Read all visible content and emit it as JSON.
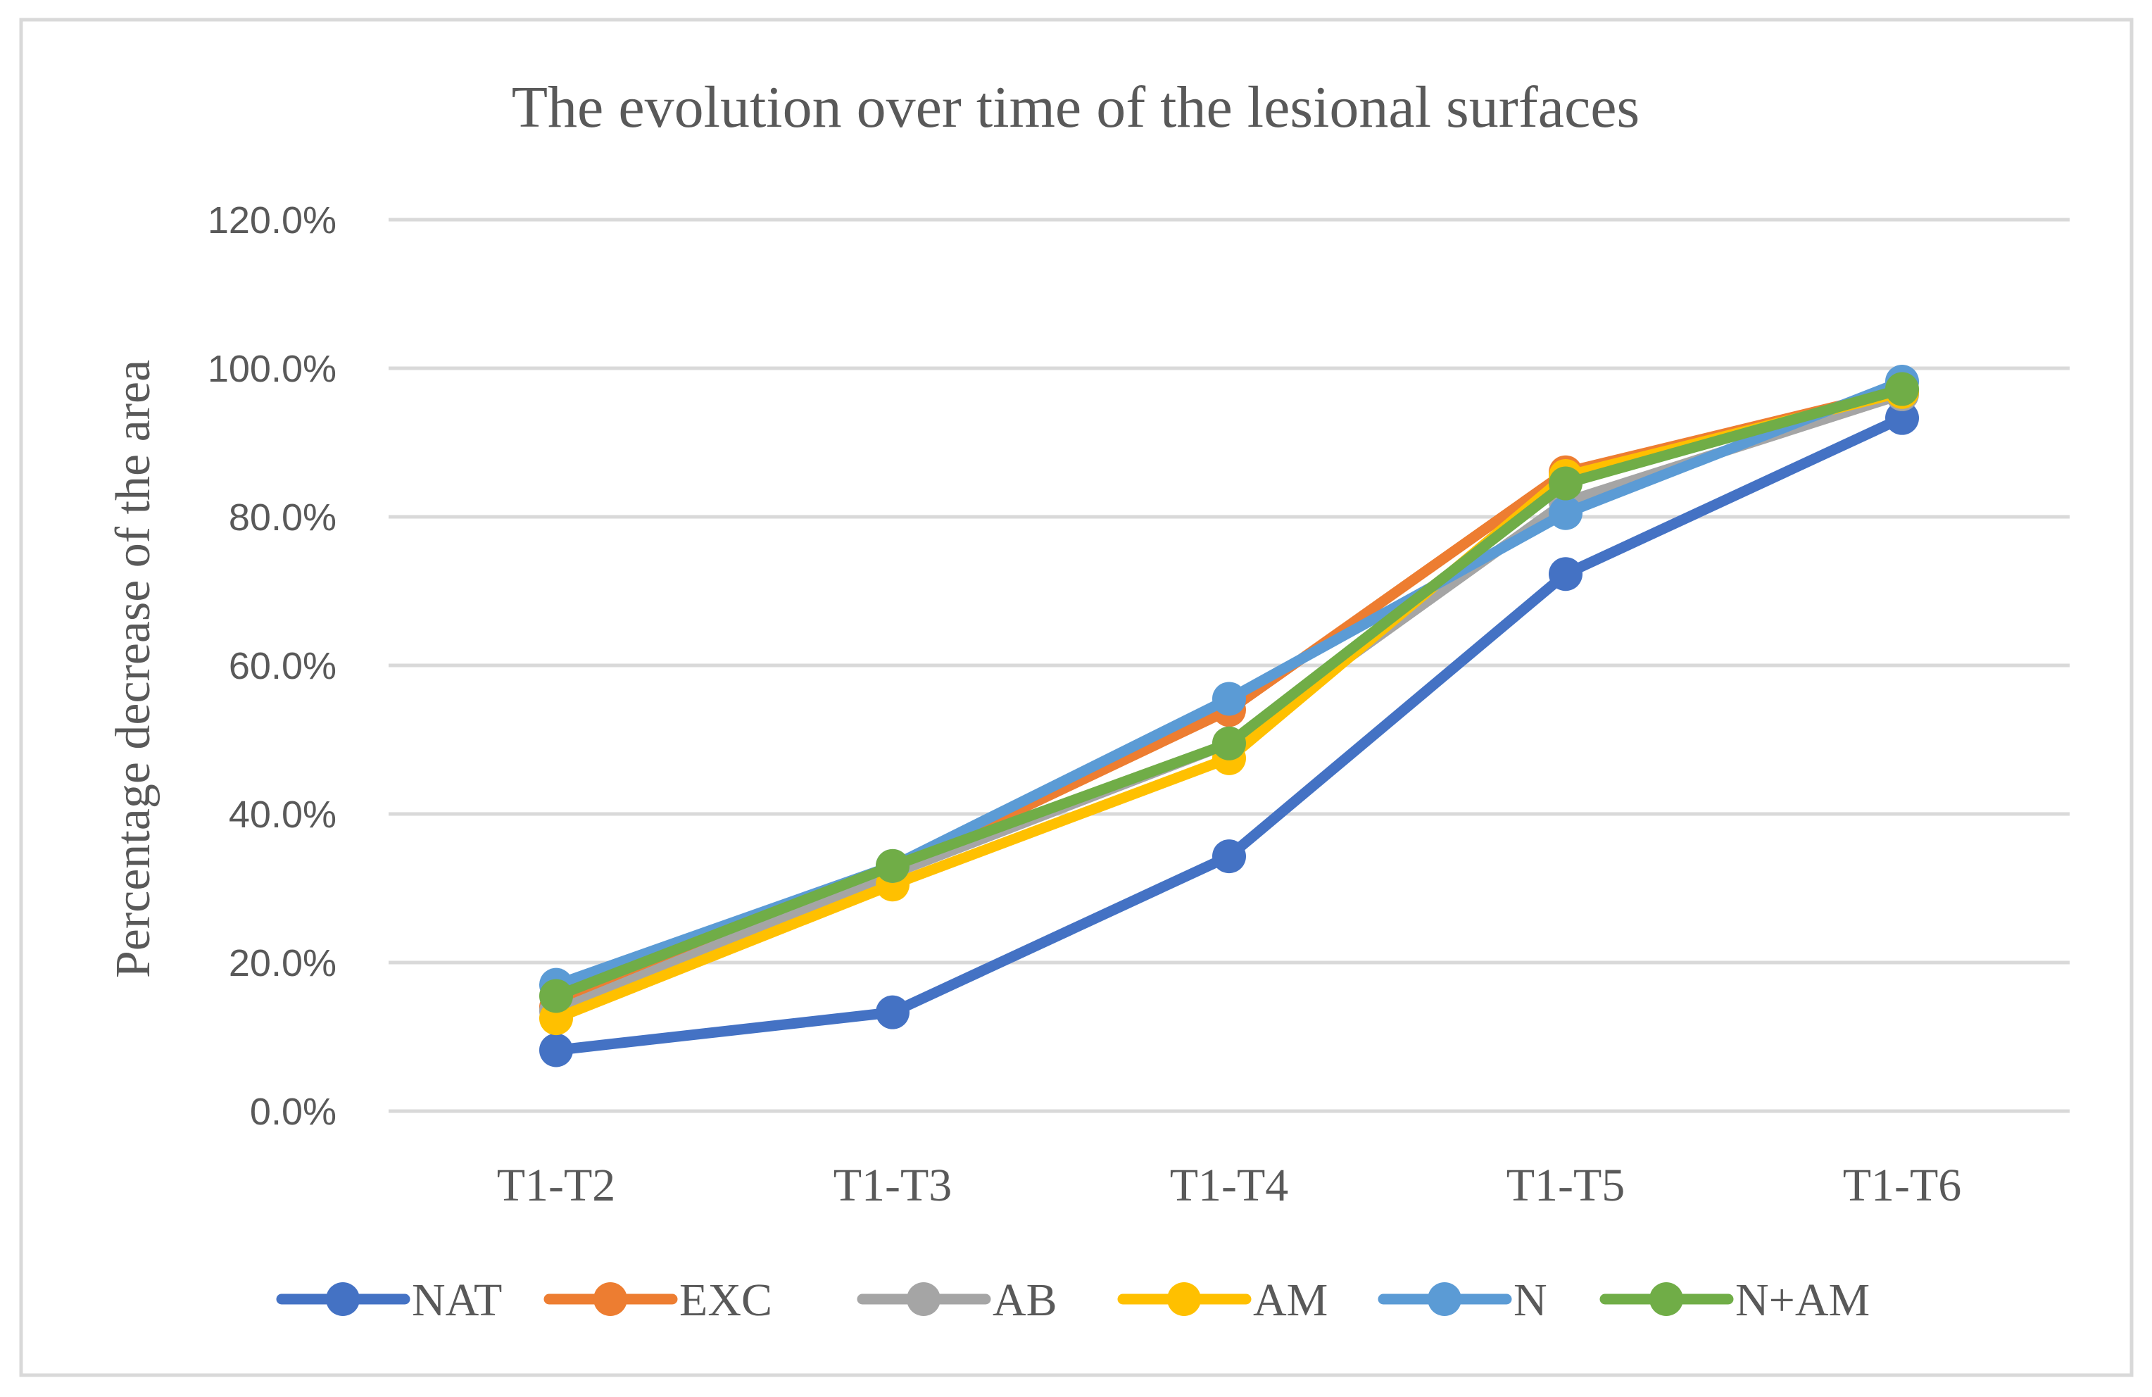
{
  "chart_data": {
    "type": "line",
    "title": "The evolution over time of the lesional surfaces",
    "xlabel": "",
    "ylabel": "Percentage decrease of the area",
    "ylim": [
      0,
      120
    ],
    "y_ticks": [
      0,
      20,
      40,
      60,
      80,
      100,
      120
    ],
    "y_tick_labels": [
      "0.0%",
      "20.0%",
      "40.0%",
      "60.0%",
      "80.0%",
      "100.0%",
      "120.0%"
    ],
    "grid": true,
    "legend_position": "bottom",
    "categories": [
      "T1-T2",
      "T1-T3",
      "T1-T4",
      "T1-T5",
      "T1-T6"
    ],
    "series": [
      {
        "name": "NAT",
        "color": "#4472C4",
        "values": [
          8.2,
          13.3,
          34.3,
          72.3,
          93.3
        ]
      },
      {
        "name": "EXC",
        "color": "#ED7D31",
        "values": [
          14.0,
          32.5,
          54.0,
          86.0,
          97.0
        ]
      },
      {
        "name": "AB",
        "color": "#A5A5A5",
        "values": [
          13.5,
          32.0,
          49.5,
          82.0,
          96.5
        ]
      },
      {
        "name": "AM",
        "color": "#FFC000",
        "values": [
          12.5,
          30.5,
          47.5,
          85.5,
          96.8
        ]
      },
      {
        "name": "N",
        "color": "#5B9BD5",
        "values": [
          17.0,
          33.0,
          55.5,
          80.5,
          98.2
        ]
      },
      {
        "name": "N+AM",
        "color": "#70AD47",
        "values": [
          15.5,
          33.0,
          49.5,
          84.5,
          97.2
        ]
      }
    ]
  }
}
